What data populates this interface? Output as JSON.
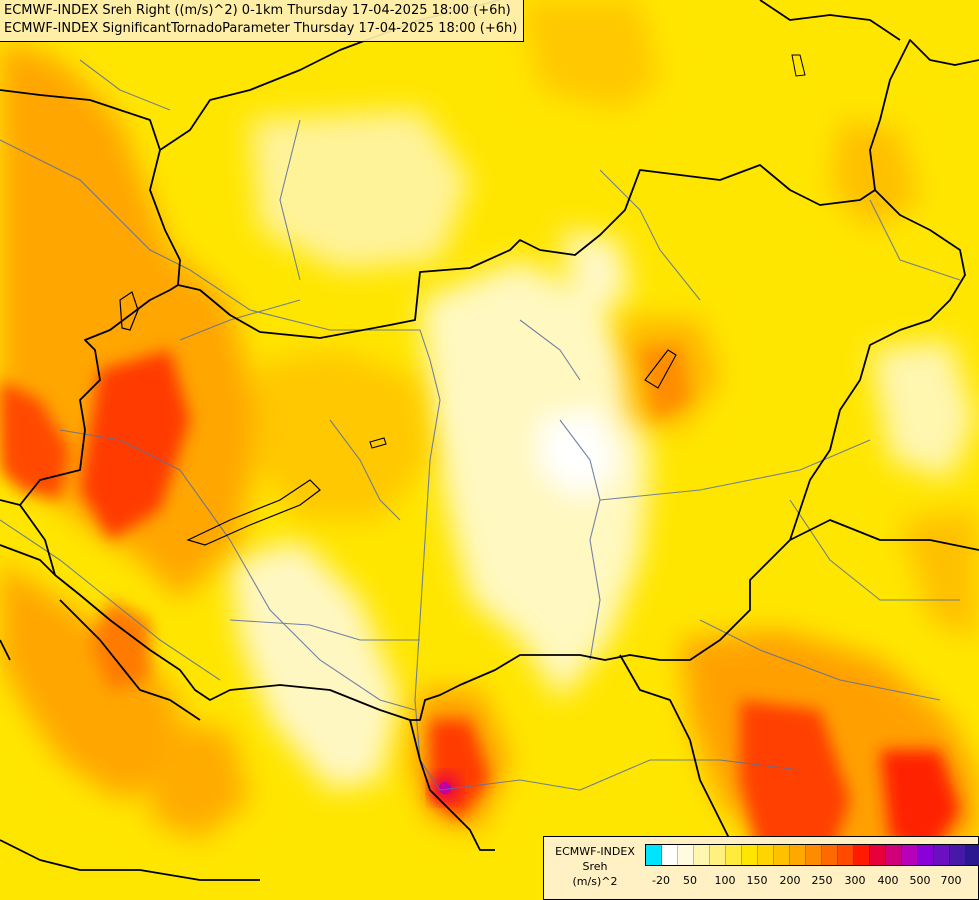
{
  "header": {
    "line1": "ECMWF-INDEX Sreh Right ((m/s)^2) 0-1km Thursday 17-04-2025 18:00 (+6h)",
    "line2": "ECMWF-INDEX SignificantTornadoParameter Thursday 17-04-2025 18:00 (+6h)"
  },
  "legend": {
    "line1": "ECMWF-INDEX",
    "line2": "Sreh",
    "line3": "(m/s)^2",
    "ticks": [
      "-20",
      "50",
      "100",
      "150",
      "200",
      "250",
      "300",
      "400",
      "500",
      "700"
    ],
    "colors": [
      "#00e5ff",
      "#ffffff",
      "#fffbe0",
      "#fff6b0",
      "#fff080",
      "#ffeb3b",
      "#ffe600",
      "#ffd400",
      "#ffc000",
      "#ffa800",
      "#ff8c00",
      "#ff6a00",
      "#ff4a00",
      "#ff1a00",
      "#e8003a",
      "#d0007a",
      "#b800b8",
      "#8a00d8",
      "#6a10c0",
      "#4818a8",
      "#2a1890",
      "#0a0878"
    ]
  },
  "colors": {
    "base": "#ffe600",
    "light": "#fff8c0",
    "orange": "#ffa600",
    "red": "#ff3a00",
    "border": "#000000",
    "river": "#5a6ea0"
  }
}
